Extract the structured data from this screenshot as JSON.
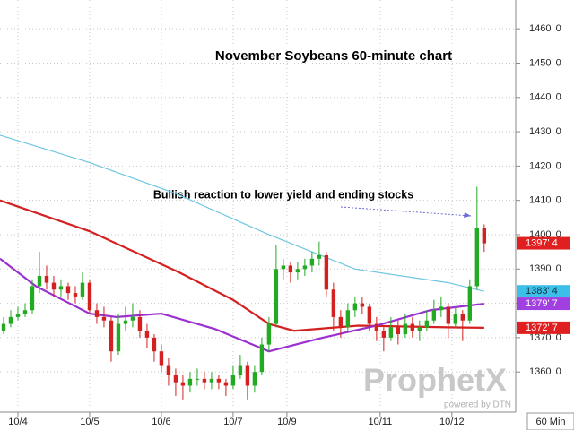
{
  "chart_data": {
    "type": "candlestick",
    "title": "November Soybeans 60-minute chart",
    "annotation": "Bullish reaction to lower yield and ending stocks",
    "interval": "60 Min",
    "logo": "ProphetX",
    "logo_sub": "powered by DTN",
    "up_color": "#22aa22",
    "down_color": "#d42020",
    "grid": true,
    "xlim": [
      -0.5,
      71.4
    ],
    "ylim": [
      1348.3,
      1468.4
    ],
    "xticks": [
      {
        "value": 2,
        "label": "10/4"
      },
      {
        "value": 12,
        "label": "10/5"
      },
      {
        "value": 22,
        "label": "10/6"
      },
      {
        "value": 32,
        "label": "10/7"
      },
      {
        "value": 39.5,
        "label": "10/9"
      },
      {
        "value": 52.5,
        "label": "10/11"
      },
      {
        "value": 62.5,
        "label": "10/12"
      }
    ],
    "yticks": [
      {
        "value": 1360,
        "label": "1360' 0"
      },
      {
        "value": 1370,
        "label": "1370' 0"
      },
      {
        "value": 1380,
        "label": "1380' 0"
      },
      {
        "value": 1390,
        "label": "1390' 0"
      },
      {
        "value": 1400,
        "label": "1400' 0"
      },
      {
        "value": 1410,
        "label": "1410' 0"
      },
      {
        "value": 1420,
        "label": "1420' 0"
      },
      {
        "value": 1430,
        "label": "1430' 0"
      },
      {
        "value": 1440,
        "label": "1440' 0"
      },
      {
        "value": 1450,
        "label": "1450' 0"
      },
      {
        "value": 1460,
        "label": "1460' 0"
      }
    ],
    "open": [
      1372,
      1374,
      1376,
      1377,
      1378,
      1385,
      1388,
      1386,
      1384,
      1385,
      1383,
      1382,
      1386,
      1378,
      1376,
      1375,
      1366,
      1374,
      1375,
      1376,
      1372,
      1370,
      1366,
      1362,
      1359,
      1357,
      1356,
      1358,
      1358,
      1357,
      1358,
      1357,
      1356,
      1359,
      1362,
      1356,
      1360,
      1368,
      1374,
      1390,
      1391,
      1389,
      1390,
      1391,
      1393,
      1394,
      1384,
      1376,
      1373,
      1378,
      1380,
      1379,
      1374,
      1372,
      1370,
      1373,
      1371,
      1374,
      1372,
      1373,
      1375,
      1378,
      1379,
      1374,
      1377,
      1375,
      1385,
      1402
    ],
    "high": [
      1376,
      1378,
      1379,
      1380,
      1387,
      1395,
      1391,
      1388,
      1387,
      1386,
      1385,
      1389,
      1387,
      1380,
      1379,
      1376,
      1377,
      1379,
      1380,
      1378,
      1374,
      1371,
      1368,
      1364,
      1361,
      1359,
      1360,
      1361,
      1360,
      1360,
      1359,
      1358,
      1362,
      1365,
      1363,
      1362,
      1370,
      1376,
      1397,
      1393,
      1392,
      1392,
      1393,
      1395,
      1398,
      1395,
      1386,
      1378,
      1380,
      1382,
      1382,
      1380,
      1376,
      1373,
      1376,
      1375,
      1377,
      1376,
      1375,
      1378,
      1381,
      1382,
      1380,
      1379,
      1378,
      1387,
      1414,
      1403
    ],
    "low": [
      1371,
      1373,
      1375,
      1376,
      1377,
      1383,
      1384,
      1382,
      1382,
      1381,
      1380,
      1381,
      1377,
      1374,
      1373,
      1363,
      1365,
      1372,
      1373,
      1370,
      1367,
      1363,
      1360,
      1356,
      1353,
      1352,
      1354,
      1356,
      1355,
      1355,
      1355,
      1353,
      1355,
      1358,
      1352,
      1354,
      1359,
      1366,
      1373,
      1387,
      1386,
      1387,
      1388,
      1389,
      1391,
      1382,
      1372,
      1370,
      1372,
      1376,
      1377,
      1372,
      1369,
      1366,
      1369,
      1368,
      1370,
      1370,
      1369,
      1372,
      1374,
      1376,
      1370,
      1373,
      1369,
      1374,
      1384,
      1395
    ],
    "close": [
      1374,
      1376,
      1377,
      1378,
      1385,
      1388,
      1386,
      1384,
      1385,
      1383,
      1382,
      1386,
      1378,
      1376,
      1375,
      1366,
      1374,
      1375,
      1376,
      1372,
      1370,
      1366,
      1362,
      1359,
      1357,
      1356,
      1358,
      1358,
      1357,
      1358,
      1357,
      1356,
      1359,
      1362,
      1356,
      1360,
      1368,
      1374,
      1390,
      1391,
      1389,
      1390,
      1391,
      1393,
      1394,
      1384,
      1376,
      1373,
      1378,
      1380,
      1379,
      1374,
      1372,
      1370,
      1373,
      1371,
      1374,
      1372,
      1373,
      1375,
      1378,
      1379,
      1374,
      1377,
      1375,
      1385,
      1402,
      1397.5
    ],
    "overlays": [
      {
        "color": "#6cc6e0",
        "x": [
          -0.5,
          12,
          24,
          37,
          49,
          62,
          67
        ],
        "values": [
          1429,
          1421,
          1412,
          1400,
          1390,
          1386,
          1383.5
        ]
      },
      {
        "color": "#d42020",
        "x": [
          -0.5,
          12,
          24.5,
          32,
          37,
          40.5,
          49.5,
          62,
          67
        ],
        "values": [
          1410,
          1401,
          1389,
          1381,
          1374,
          1372,
          1373.5,
          1373,
          1372.875
        ]
      },
      {
        "color": "#9b30d0",
        "x": [
          -0.5,
          4.5,
          12,
          15.75,
          22,
          29.5,
          37,
          44.5,
          52,
          59.5,
          67
        ],
        "values": [
          1393,
          1385,
          1377,
          1376,
          1377,
          1372.5,
          1366,
          1370,
          1373.5,
          1378,
          1379.875
        ]
      }
    ],
    "price_tags": [
      {
        "value": 1397.5,
        "label": "1397' 4",
        "color": "#e02020",
        "text_color": "#ffffff"
      },
      {
        "value": 1383.5,
        "label": "1383' 4",
        "color": "#3cc0ea",
        "text_color": "#10303a"
      },
      {
        "value": 1379.875,
        "label": "1379' 7",
        "color": "#a040e0",
        "text_color": "#ffffff"
      },
      {
        "value": 1372.875,
        "label": "1372' 7",
        "color": "#e02020",
        "text_color": "#ffffff"
      }
    ]
  }
}
